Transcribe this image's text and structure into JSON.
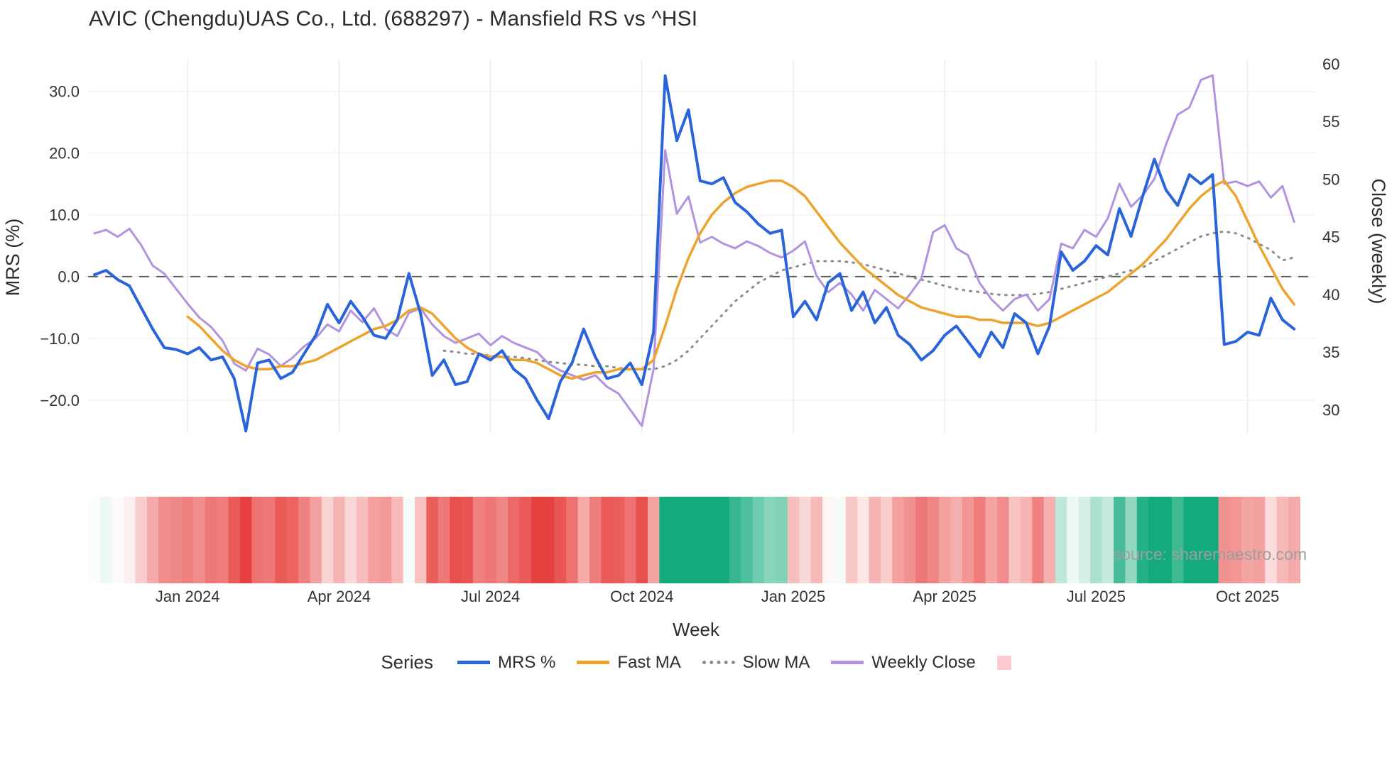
{
  "source": "source: sharemaestro.com",
  "legend": {
    "title": "Series",
    "items": [
      {
        "label": "MRS %",
        "color": "#2a64db",
        "style": "solid",
        "type": "line"
      },
      {
        "label": "Fast MA",
        "color": "#eea32f",
        "style": "solid",
        "type": "line"
      },
      {
        "label": "Slow MA",
        "color": "#8c8c8c",
        "style": "dotted",
        "type": "line"
      },
      {
        "label": "Weekly Close",
        "color": "#b193e0",
        "style": "solid",
        "type": "line"
      },
      {
        "label": "",
        "color": "#fbc9cf",
        "style": "solid",
        "type": "patch"
      }
    ]
  },
  "chart_data": {
    "type": "line",
    "title": "AVIC (Chengdu)UAS Co., Ltd. (688297) - Mansfield RS vs ^HSI",
    "x_unit": "week_index",
    "n_weeks": 104,
    "axes": {
      "left_label": "MRS (%)",
      "right_label": "Close (weekly)",
      "x_label": "Week",
      "left_ticks": [
        {
          "label": "30.0",
          "value": 30
        },
        {
          "label": "20.0",
          "value": 20
        },
        {
          "label": "10.0",
          "value": 10
        },
        {
          "label": "0.0",
          "value": 0
        },
        {
          "label": "−10.0",
          "value": -10
        },
        {
          "label": "−20.0",
          "value": -20
        }
      ],
      "right_ticks": [
        {
          "label": "60",
          "value": 60
        },
        {
          "label": "55",
          "value": 55
        },
        {
          "label": "50",
          "value": 50
        },
        {
          "label": "45",
          "value": 45
        },
        {
          "label": "40",
          "value": 40
        },
        {
          "label": "35",
          "value": 35
        },
        {
          "label": "30",
          "value": 30
        }
      ],
      "x_ticks": [
        {
          "label": "Jan 2024",
          "index": 8
        },
        {
          "label": "Apr 2024",
          "index": 21
        },
        {
          "label": "Jul 2024",
          "index": 34
        },
        {
          "label": "Oct 2024",
          "index": 47
        },
        {
          "label": "Jan 2025",
          "index": 60
        },
        {
          "label": "Apr 2025",
          "index": 73
        },
        {
          "label": "Jul 2025",
          "index": 86
        },
        {
          "label": "Oct 2025",
          "index": 99
        }
      ]
    },
    "y_left": {
      "min": -25.3,
      "max": 35.0
    },
    "y_right": {
      "min": 28.0,
      "max": 60.3
    },
    "zero_line": true,
    "series": [
      {
        "name": "MRS %",
        "axis": "left",
        "color": "#2a64db",
        "width": 4,
        "dash": null,
        "start_index": 0,
        "values": [
          0.3,
          1.0,
          -0.5,
          -1.5,
          -5.0,
          -8.5,
          -11.5,
          -11.8,
          -12.5,
          -11.5,
          -13.5,
          -13.0,
          -16.5,
          -25.0,
          -14.0,
          -13.5,
          -16.5,
          -15.5,
          -12.5,
          -9.5,
          -4.5,
          -7.5,
          -4.0,
          -6.5,
          -9.5,
          -10.0,
          -7.0,
          0.5,
          -6.0,
          -16.0,
          -13.5,
          -17.5,
          -17.0,
          -12.5,
          -13.5,
          -12.0,
          -15.0,
          -16.5,
          -20.0,
          -23.0,
          -17.0,
          -14.0,
          -8.5,
          -13.0,
          -16.5,
          -16.0,
          -14.0,
          -17.5,
          -9.0,
          32.5,
          22.0,
          27.0,
          15.5,
          15.0,
          16.0,
          12.0,
          10.5,
          8.5,
          7.0,
          7.5,
          -6.5,
          -4.0,
          -7.0,
          -1.0,
          0.5,
          -5.5,
          -2.5,
          -7.5,
          -5.0,
          -9.5,
          -11.0,
          -13.5,
          -12.0,
          -9.5,
          -8.0,
          -10.5,
          -13.0,
          -9.0,
          -11.5,
          -6.0,
          -7.5,
          -12.5,
          -8.0,
          4.0,
          1.0,
          2.5,
          5.0,
          3.5,
          11.0,
          6.5,
          13.0,
          19.0,
          14.0,
          11.5,
          16.5,
          15.0,
          16.5,
          -11.0,
          -10.5,
          -9.0,
          -9.5,
          -3.5,
          -7.0,
          -8.5
        ]
      },
      {
        "name": "Fast MA",
        "axis": "left",
        "color": "#eea32f",
        "width": 3.5,
        "dash": null,
        "start_index": 8,
        "values": [
          -6.5,
          -8.0,
          -10.0,
          -12.0,
          -13.5,
          -14.5,
          -15.0,
          -15.0,
          -14.5,
          -14.5,
          -14.0,
          -13.5,
          -12.5,
          -11.5,
          -10.5,
          -9.5,
          -8.5,
          -8.0,
          -7.0,
          -5.5,
          -5.0,
          -6.0,
          -8.0,
          -10.0,
          -11.5,
          -12.5,
          -13.0,
          -13.0,
          -13.5,
          -13.5,
          -14.0,
          -15.0,
          -16.0,
          -16.5,
          -16.0,
          -15.5,
          -15.5,
          -15.0,
          -15.0,
          -15.0,
          -13.5,
          -8.0,
          -2.0,
          3.0,
          7.0,
          10.0,
          12.0,
          13.5,
          14.5,
          15.0,
          15.5,
          15.5,
          14.5,
          13.0,
          10.5,
          8.0,
          5.5,
          3.5,
          1.5,
          0.0,
          -1.5,
          -3.0,
          -4.0,
          -5.0,
          -5.5,
          -6.0,
          -6.5,
          -6.5,
          -7.0,
          -7.0,
          -7.5,
          -7.5,
          -7.5,
          -8.0,
          -7.5,
          -6.5,
          -5.5,
          -4.5,
          -3.5,
          -2.5,
          -1.0,
          0.5,
          2.0,
          4.0,
          6.0,
          8.5,
          11.0,
          13.0,
          14.5,
          15.5,
          13.0,
          9.0,
          5.0,
          1.5,
          -2.0,
          -4.5
        ]
      },
      {
        "name": "Slow MA",
        "axis": "left",
        "color": "#8c8c8c",
        "width": 3,
        "dash": "2 8",
        "start_index": 30,
        "values": [
          -12.0,
          -12.2,
          -12.5,
          -12.5,
          -12.8,
          -13.0,
          -13.0,
          -13.2,
          -13.5,
          -13.8,
          -14.0,
          -14.2,
          -14.3,
          -14.5,
          -14.5,
          -14.8,
          -15.0,
          -15.0,
          -15.0,
          -14.5,
          -13.5,
          -12.0,
          -10.0,
          -8.0,
          -6.0,
          -4.0,
          -2.5,
          -1.0,
          0.0,
          1.0,
          1.5,
          2.0,
          2.5,
          2.5,
          2.5,
          2.3,
          2.0,
          1.5,
          1.0,
          0.5,
          0.0,
          -0.5,
          -1.0,
          -1.5,
          -2.0,
          -2.3,
          -2.5,
          -2.8,
          -3.0,
          -3.0,
          -3.0,
          -2.8,
          -2.5,
          -2.0,
          -1.5,
          -1.0,
          -0.5,
          0.0,
          0.5,
          1.0,
          1.5,
          2.5,
          3.5,
          4.5,
          5.5,
          6.5,
          7.0,
          7.3,
          7.0,
          6.3,
          5.3,
          4.3,
          2.6,
          3.1
        ]
      },
      {
        "name": "Weekly Close",
        "axis": "right",
        "color": "#b193e0",
        "width": 3,
        "dash": null,
        "start_index": 0,
        "values": [
          45.3,
          45.6,
          45.0,
          45.7,
          44.3,
          42.5,
          41.8,
          40.5,
          39.2,
          38.0,
          37.2,
          36.0,
          34.0,
          33.4,
          35.3,
          34.8,
          33.8,
          34.5,
          35.5,
          36.2,
          37.4,
          36.8,
          38.6,
          37.6,
          38.8,
          37.0,
          36.4,
          38.4,
          38.8,
          37.4,
          36.4,
          35.8,
          36.2,
          36.6,
          35.6,
          36.4,
          35.8,
          35.4,
          35.0,
          34.0,
          33.4,
          33.0,
          32.6,
          33.0,
          32.0,
          31.4,
          30.0,
          28.6,
          33.5,
          52.5,
          47.0,
          48.5,
          44.5,
          45.0,
          44.4,
          44.0,
          44.6,
          44.2,
          43.6,
          43.2,
          43.8,
          44.6,
          41.6,
          40.2,
          41.0,
          40.0,
          38.6,
          40.4,
          39.6,
          38.8,
          40.0,
          41.4,
          45.4,
          46.0,
          44.0,
          43.4,
          41.0,
          39.6,
          38.6,
          39.6,
          40.0,
          38.6,
          39.6,
          44.4,
          44.0,
          45.6,
          45.0,
          46.6,
          49.6,
          47.6,
          48.6,
          50.0,
          53.0,
          55.6,
          56.2,
          58.6,
          59.0,
          49.6,
          49.8,
          49.4,
          49.8,
          48.4,
          49.4,
          46.3
        ]
      }
    ],
    "heatmap": {
      "source_series": "MRS %",
      "pos_color": "#14ab7c",
      "neg_color": "#e6413f",
      "pos_scale": 14,
      "neg_scale": 19
    }
  }
}
